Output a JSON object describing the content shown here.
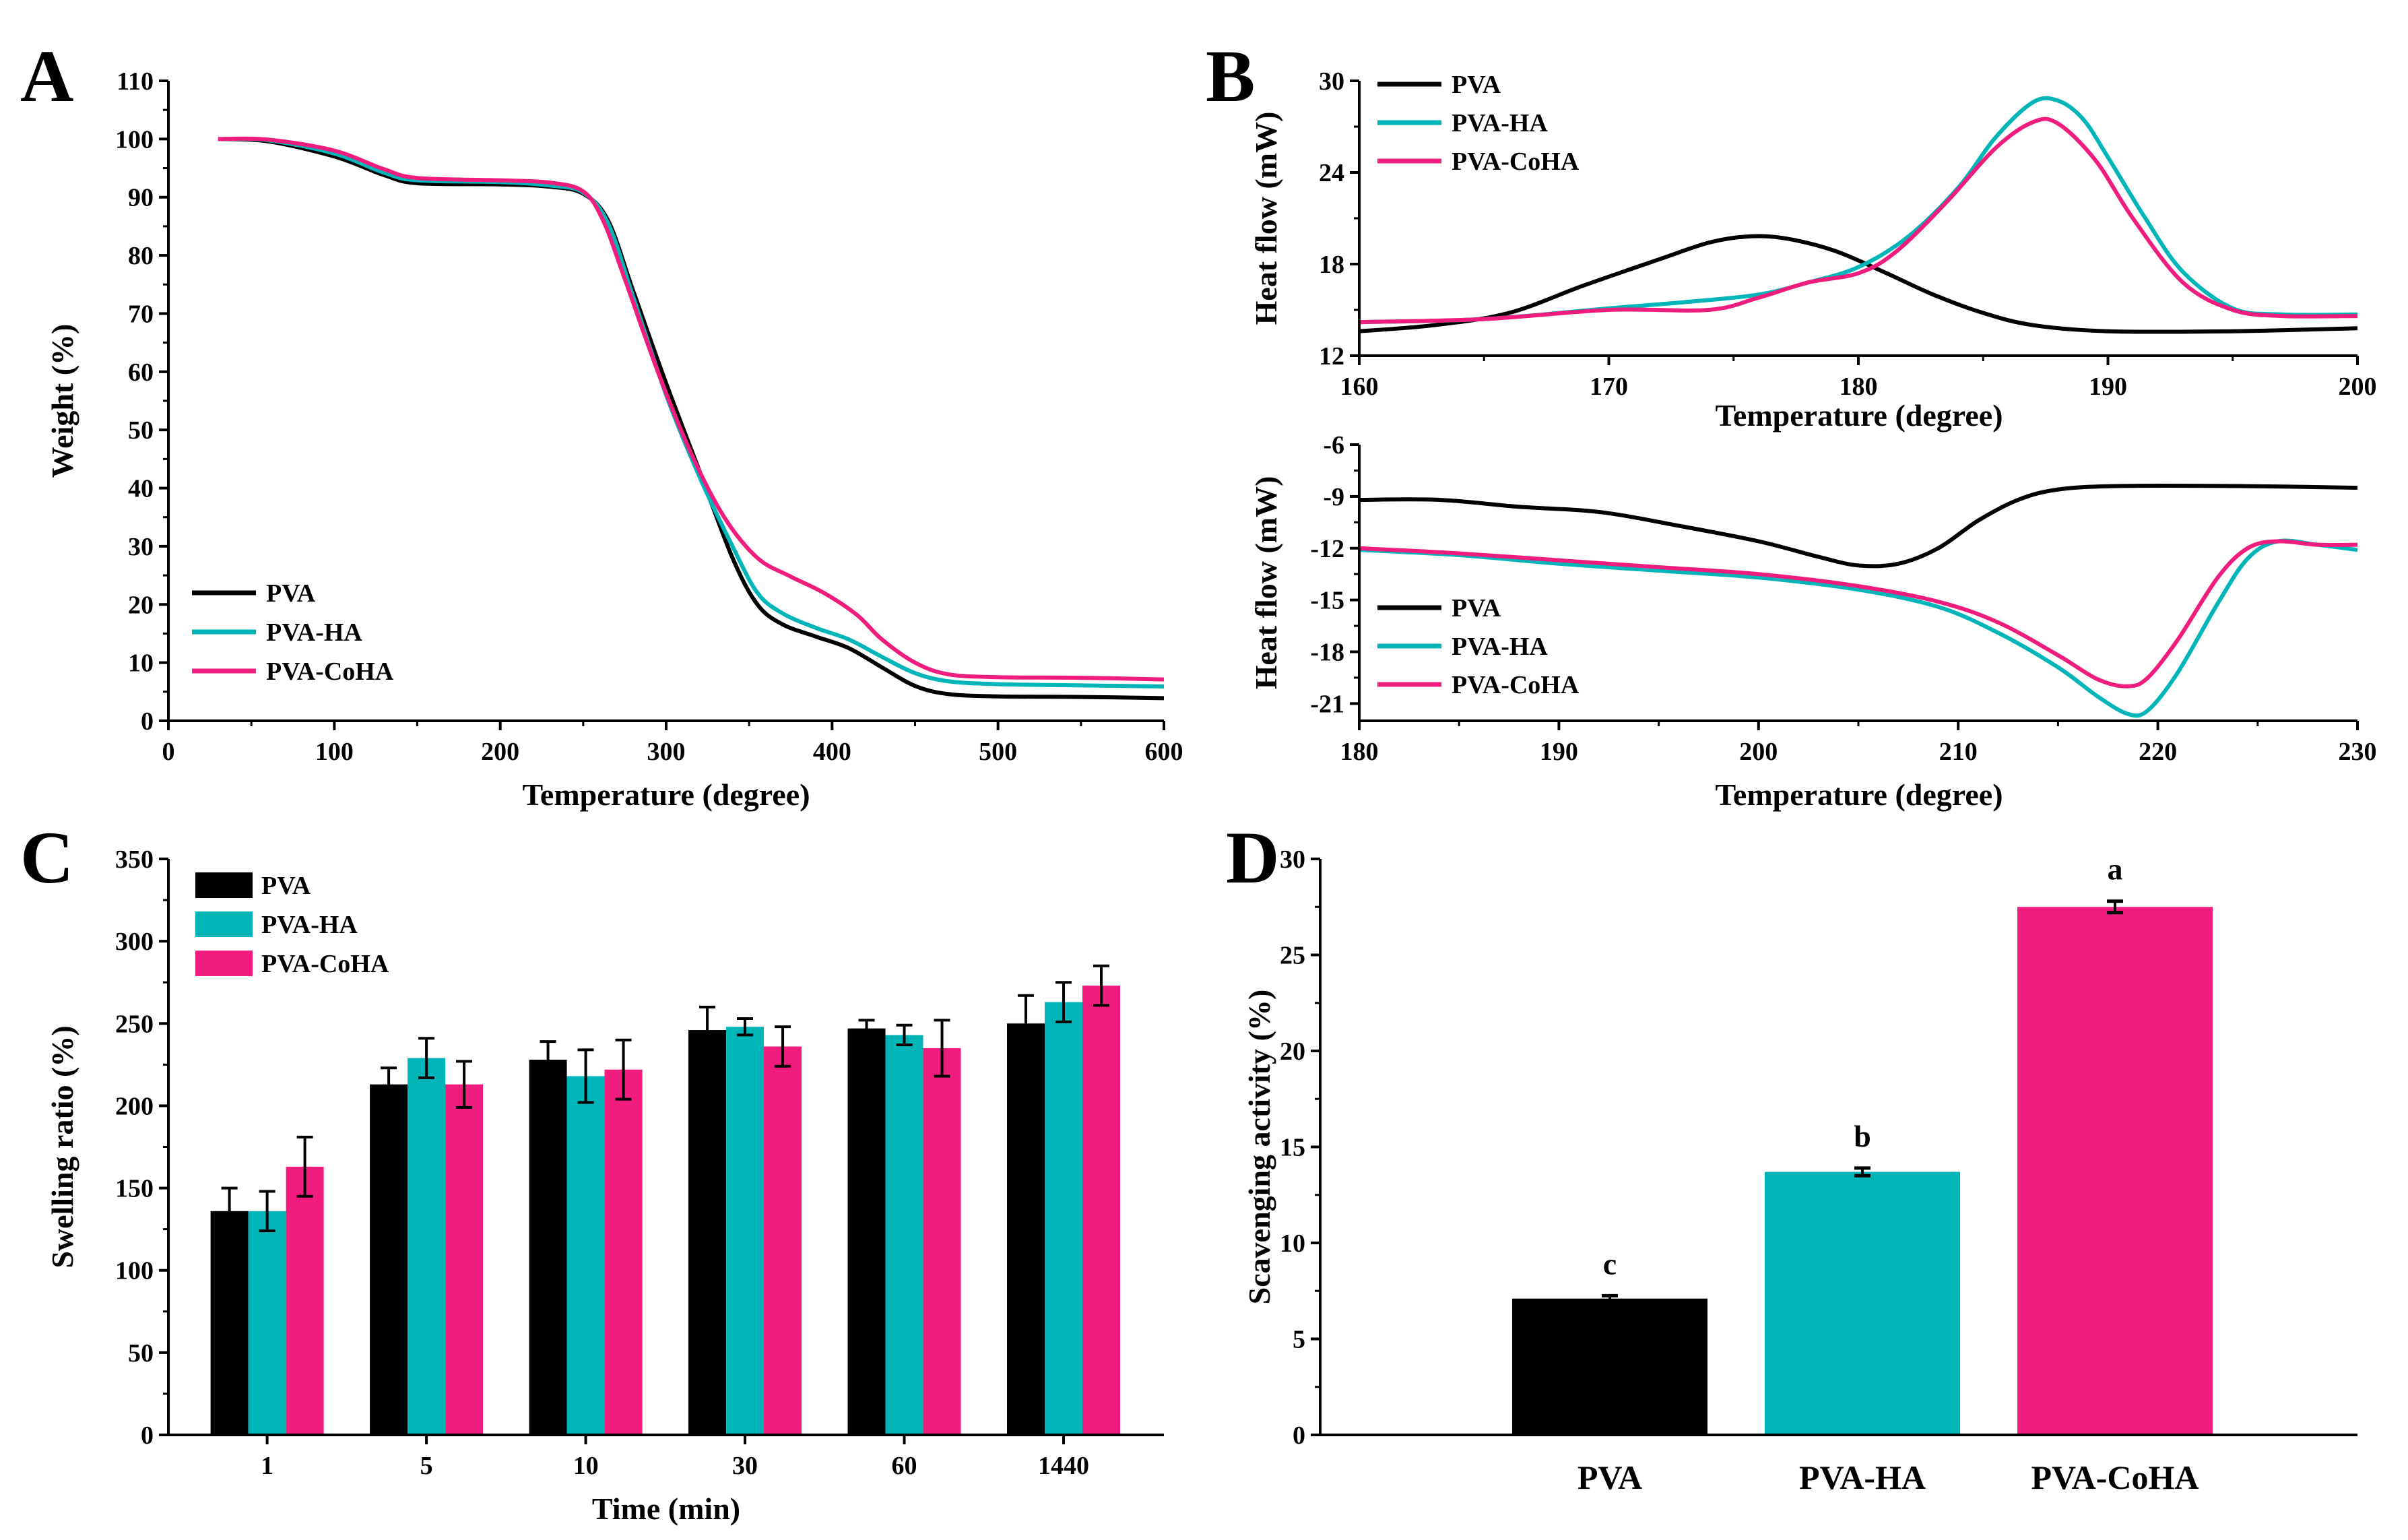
{
  "colors": {
    "PVA": "#000000",
    "PVA-HA": "#00B5B8",
    "PVA-CoHA": "#F01D7F",
    "axis": "#000000"
  },
  "chart_data": [
    {
      "id": "A",
      "panel_label": "A",
      "type": "line",
      "xlabel": "Temperature (degree)",
      "ylabel": "Weight (%)",
      "xlim": [
        0,
        600
      ],
      "ylim": [
        0,
        110
      ],
      "xticks": [
        0,
        100,
        200,
        300,
        400,
        500,
        600
      ],
      "yticks": [
        0,
        10,
        20,
        30,
        40,
        50,
        60,
        70,
        80,
        90,
        100,
        110
      ],
      "legend_position": "bottom-left",
      "series": [
        {
          "name": "PVA",
          "color": "#000000",
          "points": [
            [
              30,
              100
            ],
            [
              60,
              99.6
            ],
            [
              100,
              97
            ],
            [
              130,
              93.8
            ],
            [
              150,
              92.4
            ],
            [
              200,
              92.2
            ],
            [
              230,
              91.8
            ],
            [
              250,
              90.6
            ],
            [
              265,
              86
            ],
            [
              280,
              74
            ],
            [
              300,
              58
            ],
            [
              320,
              43
            ],
            [
              340,
              28
            ],
            [
              355,
              20
            ],
            [
              370,
              16.6
            ],
            [
              390,
              14.5
            ],
            [
              410,
              12.5
            ],
            [
              430,
              9.2
            ],
            [
              450,
              6
            ],
            [
              470,
              4.6
            ],
            [
              500,
              4.2
            ],
            [
              550,
              4.1
            ],
            [
              600,
              3.9
            ]
          ]
        },
        {
          "name": "PVA-HA",
          "color": "#00B5B8",
          "points": [
            [
              30,
              100
            ],
            [
              60,
              99.8
            ],
            [
              100,
              97.5
            ],
            [
              130,
              94.2
            ],
            [
              150,
              92.9
            ],
            [
              200,
              92.6
            ],
            [
              230,
              92
            ],
            [
              250,
              90.8
            ],
            [
              265,
              85.5
            ],
            [
              280,
              73
            ],
            [
              300,
              56
            ],
            [
              320,
              42
            ],
            [
              340,
              30
            ],
            [
              355,
              22
            ],
            [
              370,
              18.5
            ],
            [
              390,
              16
            ],
            [
              410,
              14
            ],
            [
              430,
              11
            ],
            [
              450,
              8.2
            ],
            [
              470,
              6.8
            ],
            [
              500,
              6.3
            ],
            [
              550,
              6.1
            ],
            [
              600,
              5.9
            ]
          ]
        },
        {
          "name": "PVA-CoHA",
          "color": "#F01D7F",
          "points": [
            [
              30,
              100
            ],
            [
              60,
              99.9
            ],
            [
              100,
              98
            ],
            [
              130,
              94.8
            ],
            [
              150,
              93.3
            ],
            [
              200,
              92.9
            ],
            [
              230,
              92.5
            ],
            [
              250,
              91
            ],
            [
              262,
              86
            ],
            [
              275,
              76
            ],
            [
              295,
              60
            ],
            [
              315,
              46
            ],
            [
              335,
              35
            ],
            [
              355,
              28
            ],
            [
              375,
              24.8
            ],
            [
              395,
              22
            ],
            [
              415,
              18.2
            ],
            [
              430,
              14
            ],
            [
              450,
              10
            ],
            [
              470,
              8
            ],
            [
              500,
              7.5
            ],
            [
              550,
              7.4
            ],
            [
              600,
              7.1
            ]
          ]
        }
      ]
    },
    {
      "id": "B1",
      "panel_label": "B",
      "type": "line",
      "xlabel": "Temperature (degree)",
      "ylabel": "Heat flow (mW)",
      "xlim": [
        160,
        200
      ],
      "ylim": [
        12,
        30
      ],
      "xticks": [
        160,
        170,
        180,
        190,
        200
      ],
      "yticks": [
        12,
        18,
        24,
        30
      ],
      "legend_position": "top-left",
      "series": [
        {
          "name": "PVA",
          "color": "#000000",
          "points": [
            [
              160,
              13.6
            ],
            [
              163,
              14
            ],
            [
              166,
              14.8
            ],
            [
              169,
              16.6
            ],
            [
              172,
              18.3
            ],
            [
              174,
              19.4
            ],
            [
              175.5,
              19.8
            ],
            [
              177,
              19.7
            ],
            [
              179,
              18.9
            ],
            [
              181,
              17.5
            ],
            [
              183,
              16
            ],
            [
              185,
              14.8
            ],
            [
              187,
              14
            ],
            [
              190,
              13.6
            ],
            [
              195,
              13.6
            ],
            [
              200,
              13.8
            ]
          ]
        },
        {
          "name": "PVA-HA",
          "color": "#00B5B8",
          "points": [
            [
              160,
              14.2
            ],
            [
              165,
              14.4
            ],
            [
              170,
              15.1
            ],
            [
              173,
              15.5
            ],
            [
              176,
              16
            ],
            [
              178,
              16.8
            ],
            [
              180,
              17.8
            ],
            [
              182,
              19.8
            ],
            [
              184,
              23
            ],
            [
              185.5,
              26.3
            ],
            [
              187,
              28.6
            ],
            [
              188,
              28.7
            ],
            [
              189,
              27.5
            ],
            [
              190,
              25
            ],
            [
              191.5,
              21
            ],
            [
              193,
              17.5
            ],
            [
              195,
              15.1
            ],
            [
              197,
              14.7
            ],
            [
              200,
              14.7
            ]
          ]
        },
        {
          "name": "PVA-CoHA",
          "color": "#F01D7F",
          "points": [
            [
              160,
              14.2
            ],
            [
              165,
              14.4
            ],
            [
              170,
              15.0
            ],
            [
              174,
              15.0
            ],
            [
              176,
              15.8
            ],
            [
              178,
              16.8
            ],
            [
              180,
              17.4
            ],
            [
              181.5,
              18.8
            ],
            [
              183.5,
              22
            ],
            [
              185.5,
              25.6
            ],
            [
              187,
              27.3
            ],
            [
              188,
              27.2
            ],
            [
              189.5,
              24.8
            ],
            [
              191,
              21
            ],
            [
              193,
              16.8
            ],
            [
              195,
              15.0
            ],
            [
              197,
              14.6
            ],
            [
              200,
              14.6
            ]
          ]
        }
      ]
    },
    {
      "id": "B2",
      "panel_label": "",
      "type": "line",
      "xlabel": "Temperature (degree)",
      "ylabel": "Heat flow (mW)",
      "xlim": [
        180,
        230
      ],
      "ylim": [
        -22,
        -6
      ],
      "xticks": [
        180,
        190,
        200,
        210,
        220,
        230
      ],
      "yticks": [
        -6,
        -9,
        -12,
        -15,
        -18,
        -21
      ],
      "legend_position": "bottom-left",
      "series": [
        {
          "name": "PVA",
          "color": "#000000",
          "points": [
            [
              180,
              -9.2
            ],
            [
              184,
              -9.2
            ],
            [
              188,
              -9.6
            ],
            [
              192,
              -9.9
            ],
            [
              196,
              -10.7
            ],
            [
              200,
              -11.6
            ],
            [
              203,
              -12.5
            ],
            [
              205,
              -13.0
            ],
            [
              207,
              -12.9
            ],
            [
              209,
              -12
            ],
            [
              211,
              -10.4
            ],
            [
              213,
              -9.2
            ],
            [
              215,
              -8.6
            ],
            [
              218,
              -8.4
            ],
            [
              224,
              -8.4
            ],
            [
              230,
              -8.5
            ]
          ]
        },
        {
          "name": "PVA-HA",
          "color": "#00B5B8",
          "points": [
            [
              180,
              -12.1
            ],
            [
              185,
              -12.4
            ],
            [
              190,
              -12.9
            ],
            [
              195,
              -13.3
            ],
            [
              200,
              -13.7
            ],
            [
              205,
              -14.4
            ],
            [
              209,
              -15.4
            ],
            [
              212,
              -16.9
            ],
            [
              215,
              -18.9
            ],
            [
              217,
              -20.6
            ],
            [
              218.5,
              -21.6
            ],
            [
              219.5,
              -21.4
            ],
            [
              221,
              -19.2
            ],
            [
              223,
              -15.2
            ],
            [
              224.5,
              -12.6
            ],
            [
              226,
              -11.6
            ],
            [
              228,
              -11.8
            ],
            [
              230,
              -12.1
            ]
          ]
        },
        {
          "name": "PVA-CoHA",
          "color": "#F01D7F",
          "points": [
            [
              180,
              -12.0
            ],
            [
              185,
              -12.3
            ],
            [
              190,
              -12.7
            ],
            [
              195,
              -13.1
            ],
            [
              200,
              -13.5
            ],
            [
              205,
              -14.2
            ],
            [
              209,
              -15.1
            ],
            [
              212,
              -16.3
            ],
            [
              215,
              -18.2
            ],
            [
              217,
              -19.6
            ],
            [
              218.5,
              -20.0
            ],
            [
              219.5,
              -19.5
            ],
            [
              221,
              -17.3
            ],
            [
              223,
              -13.7
            ],
            [
              224.5,
              -12.0
            ],
            [
              226,
              -11.6
            ],
            [
              228,
              -11.8
            ],
            [
              230,
              -11.8
            ]
          ]
        }
      ]
    },
    {
      "id": "C",
      "panel_label": "C",
      "type": "bar",
      "xlabel": "Time (min)",
      "ylabel": "Swelling ratio (%)",
      "ylim": [
        0,
        350
      ],
      "yticks": [
        0,
        50,
        100,
        150,
        200,
        250,
        300,
        350
      ],
      "categories": [
        "1",
        "5",
        "10",
        "30",
        "60",
        "1440"
      ],
      "legend_position": "top-left",
      "series": [
        {
          "name": "PVA",
          "color": "#000000",
          "values": [
            136,
            213,
            228,
            246,
            247,
            250
          ],
          "errors": [
            14,
            10,
            11,
            14,
            5,
            17
          ]
        },
        {
          "name": "PVA-HA",
          "color": "#00B5B8",
          "values": [
            136,
            229,
            218,
            248,
            243,
            263
          ],
          "errors": [
            12,
            12,
            16,
            5,
            6,
            12
          ]
        },
        {
          "name": "PVA-CoHA",
          "color": "#F01D7F",
          "values": [
            163,
            213,
            222,
            236,
            235,
            273
          ],
          "errors": [
            18,
            14,
            18,
            12,
            17,
            12
          ]
        }
      ]
    },
    {
      "id": "D",
      "panel_label": "D",
      "type": "bar",
      "xlabel": "",
      "ylabel": "Scavenging activity (%)",
      "ylim": [
        0,
        30
      ],
      "yticks": [
        0,
        5,
        10,
        15,
        20,
        25,
        30
      ],
      "categories": [
        "PVA",
        "PVA-HA",
        "PVA-CoHA"
      ],
      "values": [
        7.1,
        13.7,
        27.5
      ],
      "errors": [
        0.15,
        0.2,
        0.3
      ],
      "significance": [
        "c",
        "b",
        "a"
      ],
      "colors": [
        "#000000",
        "#00B5B8",
        "#F01D7F"
      ]
    }
  ]
}
